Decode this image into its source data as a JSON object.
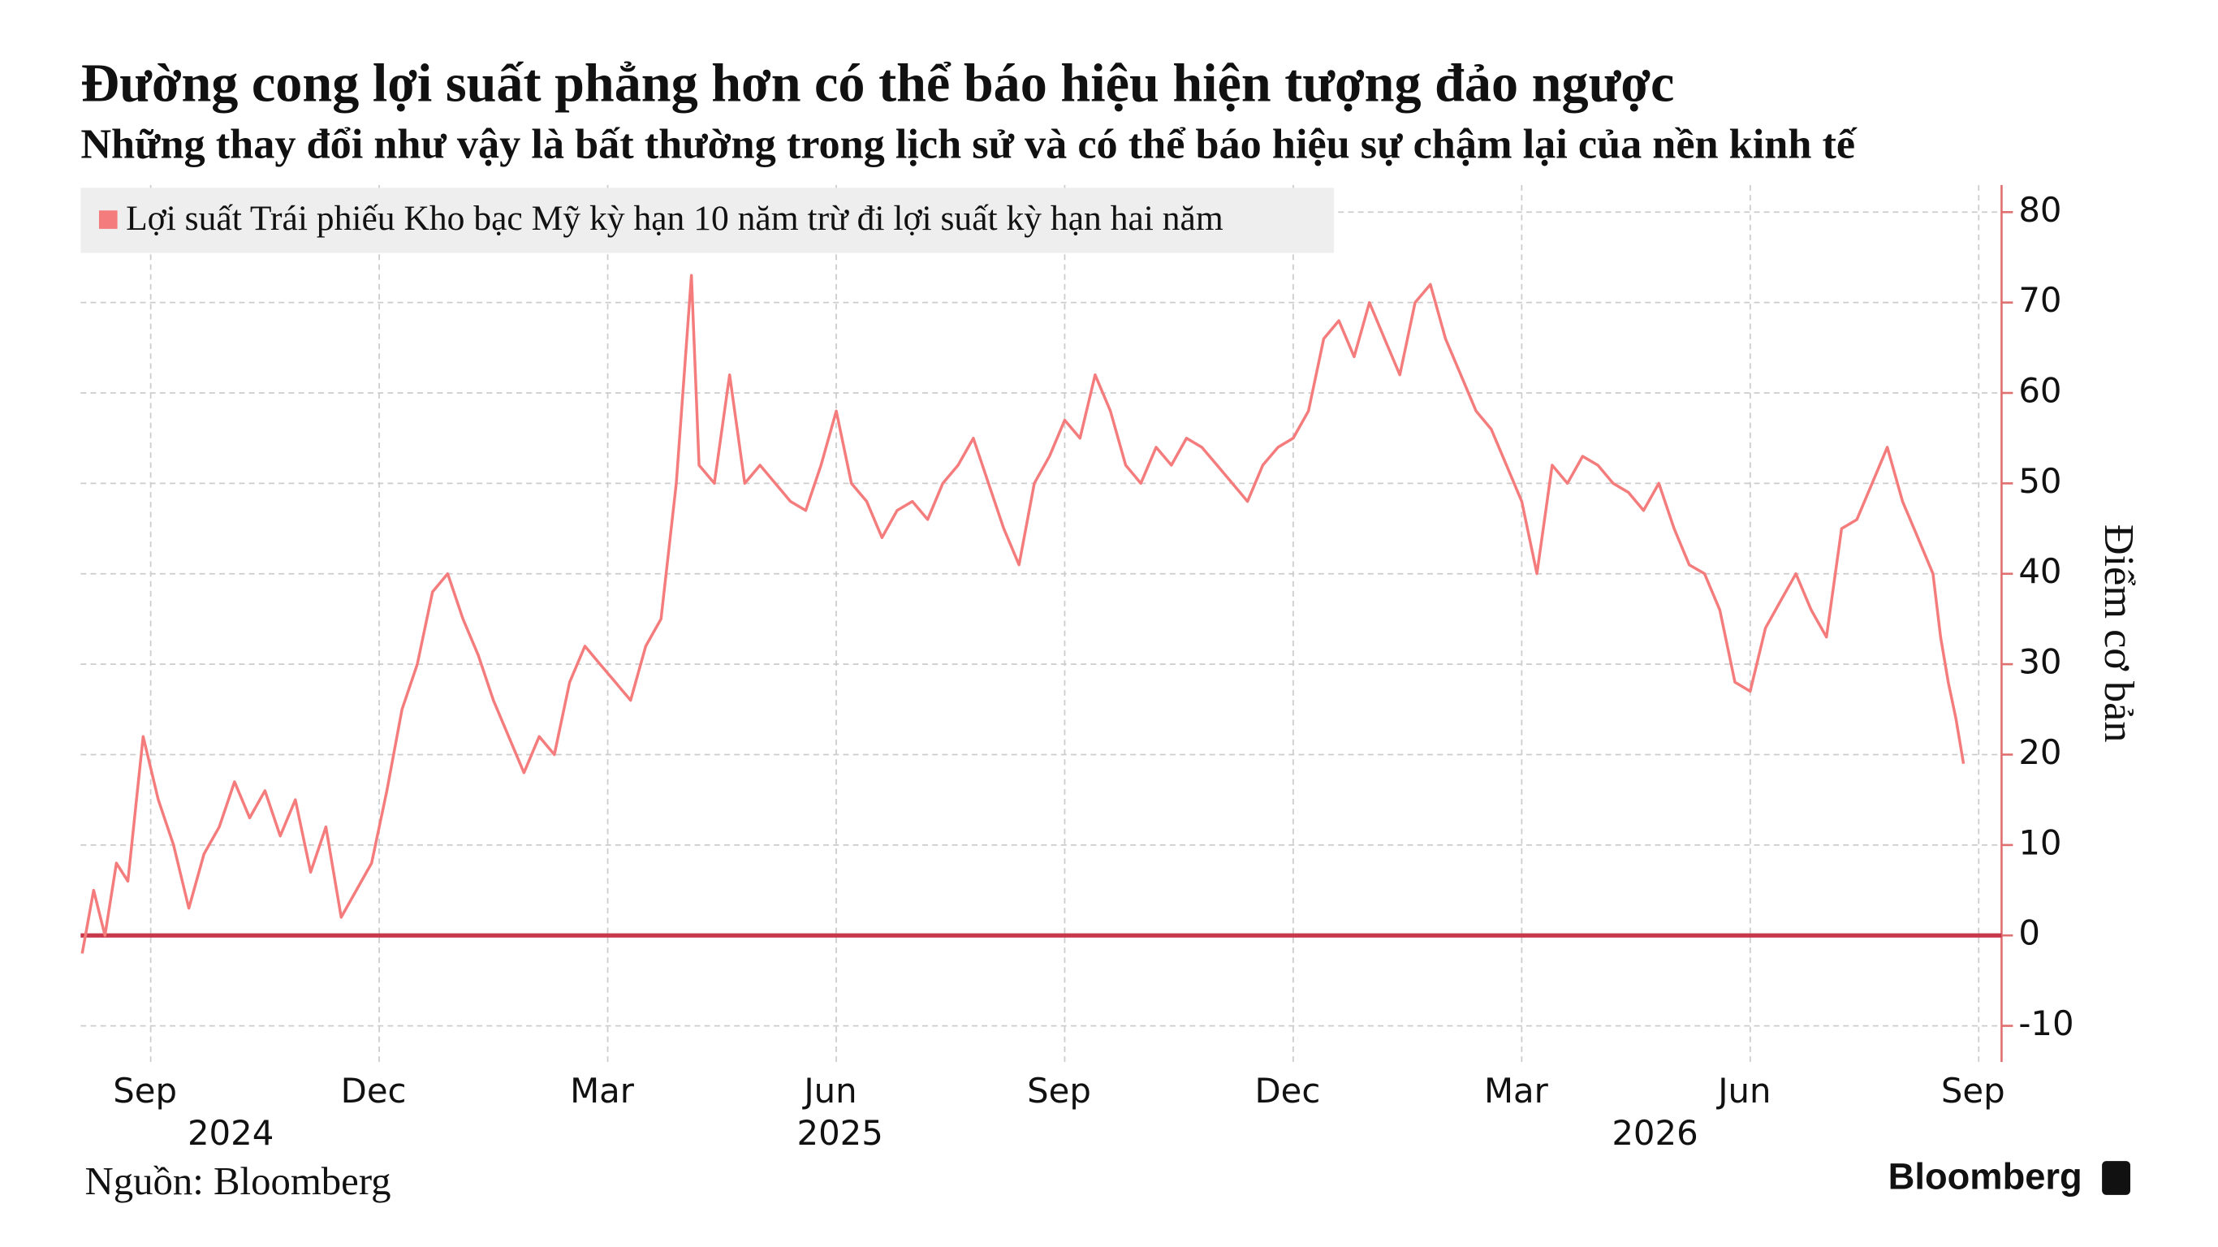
{
  "chart_data": {
    "type": "line",
    "title": "Đường cong lợi suất phẳng hơn có thể báo hiệu hiện tượng đảo ngược",
    "subtitle": "Những thay đổi như vậy là bất thường trong lịch sử và có thể báo hiệu sự chậm lại của nền kinh tế",
    "y_axis_label": "Điểm cơ bản",
    "source": "Nguồn: Bloomberg",
    "brand": "Bloomberg",
    "series": [
      {
        "name": "Lợi suất Trái phiếu Kho bạc Mỹ kỳ hạn 10 năm trừ đi lợi suất kỳ hạn hai năm",
        "color": "#f47c7c",
        "x": [
          -0.9,
          -0.75,
          -0.6,
          -0.45,
          -0.3,
          -0.1,
          0.1,
          0.3,
          0.5,
          0.7,
          0.9,
          1.1,
          1.3,
          1.5,
          1.7,
          1.9,
          2.1,
          2.3,
          2.5,
          2.7,
          2.9,
          3.1,
          3.3,
          3.5,
          3.7,
          3.9,
          4.1,
          4.3,
          4.5,
          4.7,
          4.9,
          5.1,
          5.3,
          5.5,
          5.7,
          5.9,
          6.1,
          6.3,
          6.5,
          6.7,
          6.9,
          7.1,
          7.2,
          7.4,
          7.6,
          7.8,
          8.0,
          8.2,
          8.4,
          8.6,
          8.8,
          9.0,
          9.2,
          9.4,
          9.6,
          9.8,
          10.0,
          10.2,
          10.4,
          10.6,
          10.8,
          11.0,
          11.2,
          11.4,
          11.6,
          11.8,
          12.0,
          12.2,
          12.4,
          12.6,
          12.8,
          13.0,
          13.2,
          13.4,
          13.6,
          13.8,
          14.0,
          14.2,
          14.4,
          14.6,
          14.8,
          15.0,
          15.2,
          15.4,
          15.6,
          15.8,
          16.0,
          16.2,
          16.4,
          16.6,
          16.8,
          17.0,
          17.2,
          17.4,
          17.6,
          17.8,
          18.0,
          18.2,
          18.4,
          18.6,
          18.8,
          19.0,
          19.2,
          19.4,
          19.6,
          19.8,
          20.0,
          20.2,
          20.4,
          20.6,
          20.8,
          21.0,
          21.2,
          21.4,
          21.6,
          21.8,
          22.0,
          22.2,
          22.4,
          22.6,
          22.8,
          23.0,
          23.2,
          23.4,
          23.5,
          23.6,
          23.7,
          23.8
        ],
        "values": [
          -2,
          5,
          0,
          8,
          6,
          22,
          15,
          10,
          3,
          9,
          12,
          17,
          13,
          16,
          11,
          15,
          7,
          12,
          2,
          5,
          8,
          16,
          25,
          30,
          38,
          40,
          35,
          31,
          26,
          22,
          18,
          22,
          20,
          28,
          32,
          30,
          28,
          26,
          32,
          35,
          50,
          73,
          52,
          50,
          62,
          50,
          52,
          50,
          48,
          47,
          52,
          58,
          50,
          48,
          44,
          47,
          48,
          46,
          50,
          52,
          55,
          50,
          45,
          41,
          50,
          53,
          57,
          55,
          62,
          58,
          52,
          50,
          54,
          52,
          55,
          54,
          52,
          50,
          48,
          52,
          54,
          55,
          58,
          66,
          68,
          64,
          70,
          66,
          62,
          70,
          72,
          66,
          62,
          58,
          56,
          52,
          48,
          40,
          52,
          50,
          53,
          52,
          50,
          49,
          47,
          50,
          45,
          41,
          40,
          36,
          28,
          27,
          34,
          37,
          40,
          36,
          33,
          45,
          46,
          50,
          54,
          48,
          44,
          40,
          33,
          28,
          24,
          19
        ]
      }
    ],
    "zero_line_color": "#c8384b",
    "xlim": [
      -0.92,
      24.3
    ],
    "xticks": [
      {
        "value": 0,
        "label": "Sep"
      },
      {
        "value": 3,
        "label": "Dec"
      },
      {
        "value": 6,
        "label": "Mar"
      },
      {
        "value": 9,
        "label": "Jun"
      },
      {
        "value": 12,
        "label": "Sep"
      },
      {
        "value": 15,
        "label": "Dec"
      },
      {
        "value": 18,
        "label": "Mar"
      },
      {
        "value": 21,
        "label": "Jun"
      },
      {
        "value": 24,
        "label": "Sep"
      }
    ],
    "year_labels": [
      {
        "value": 1.05,
        "label": "2024"
      },
      {
        "value": 9.05,
        "label": "2025"
      },
      {
        "value": 19.75,
        "label": "2026"
      }
    ],
    "ylim": [
      -14,
      83
    ],
    "yticks": [
      -10,
      0,
      10,
      20,
      30,
      40,
      50,
      60,
      70,
      80
    ],
    "grid": true
  }
}
